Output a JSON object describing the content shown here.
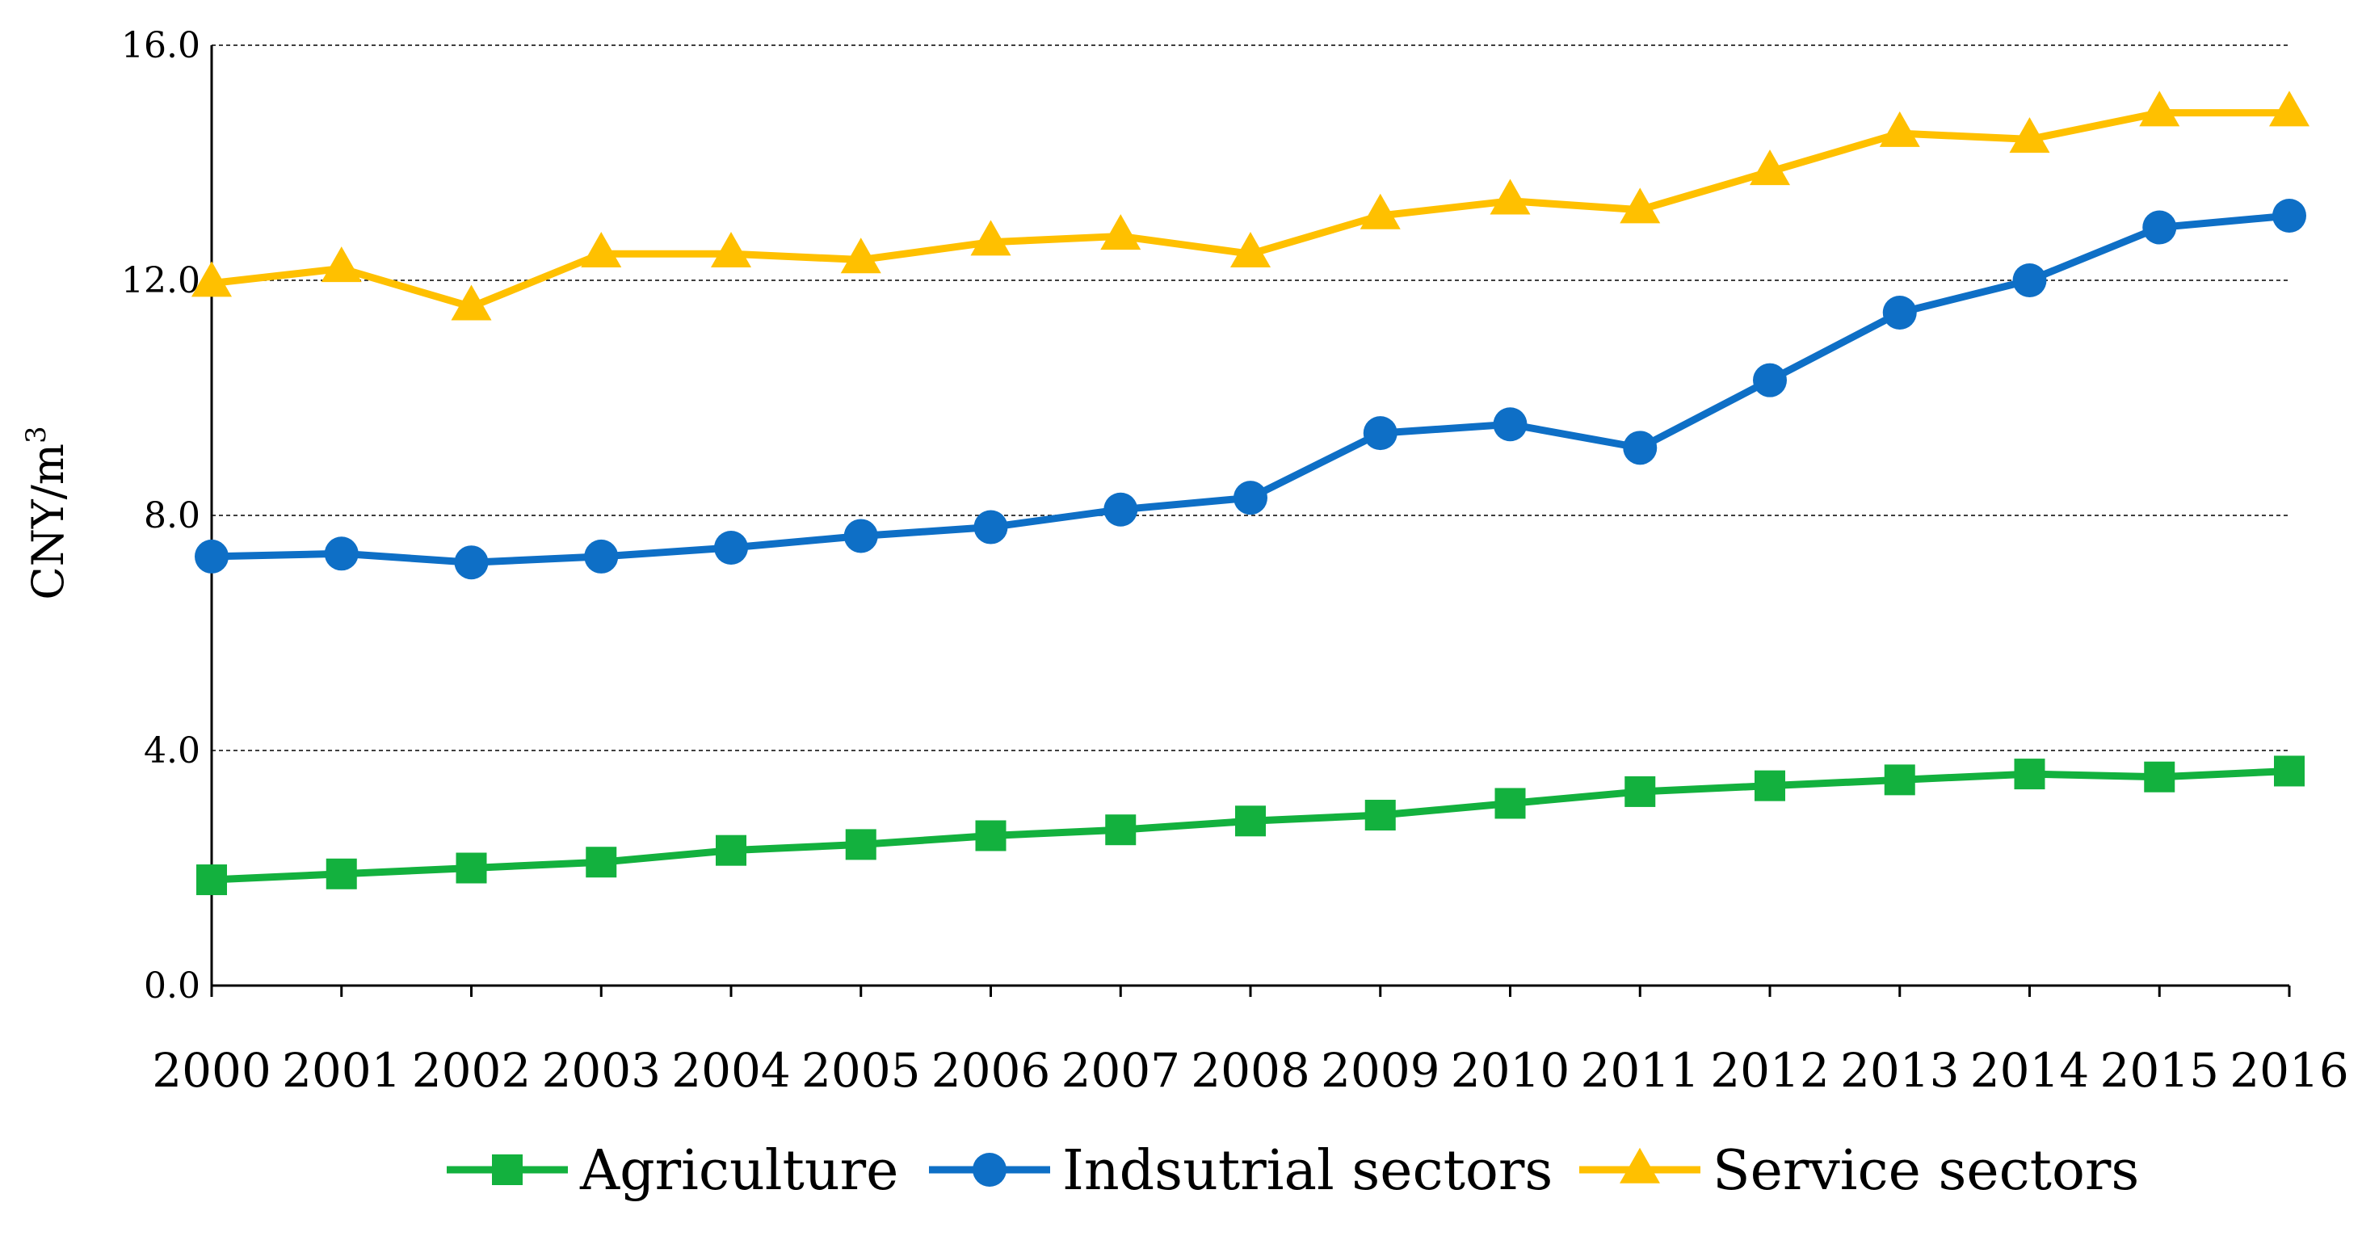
{
  "chart_data": {
    "type": "line",
    "title": "",
    "xlabel": "",
    "ylabel": "CNY/m",
    "ylabel_superscript": "3",
    "ylim": [
      0,
      16
    ],
    "yticks": [
      "0.0",
      "4.0",
      "8.0",
      "12.0",
      "16.0"
    ],
    "grid": "horizontal-dashed",
    "legend_position": "bottom",
    "x": [
      "2000",
      "2001",
      "2002",
      "2003",
      "2004",
      "2005",
      "2006",
      "2007",
      "2008",
      "2009",
      "2010",
      "2011",
      "2012",
      "2013",
      "2014",
      "2015",
      "2016"
    ],
    "series": [
      {
        "name": "Agriculture",
        "marker": "square",
        "color": "#13B13E",
        "values": [
          1.8,
          1.9,
          2.0,
          2.1,
          2.3,
          2.4,
          2.55,
          2.65,
          2.8,
          2.9,
          3.1,
          3.3,
          3.4,
          3.5,
          3.6,
          3.55,
          3.65
        ]
      },
      {
        "name": "Indsutrial sectors",
        "marker": "circle",
        "color": "#0E6FC6",
        "values": [
          7.3,
          7.35,
          7.2,
          7.3,
          7.45,
          7.65,
          7.8,
          8.1,
          8.3,
          9.4,
          9.55,
          9.15,
          10.3,
          11.45,
          12.0,
          12.9,
          13.1
        ]
      },
      {
        "name": "Service sectors",
        "marker": "triangle",
        "color": "#FFC000",
        "values": [
          11.95,
          12.2,
          11.55,
          12.45,
          12.45,
          12.35,
          12.65,
          12.75,
          12.45,
          13.1,
          13.35,
          13.2,
          13.85,
          14.5,
          14.4,
          14.85,
          14.85
        ]
      }
    ]
  }
}
